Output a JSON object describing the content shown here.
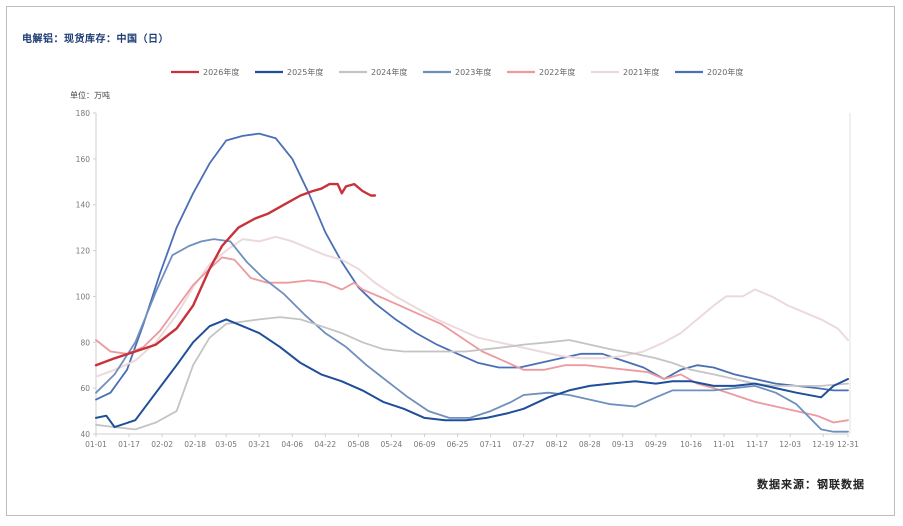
{
  "title": "电解铝：现货库存：中国（日）",
  "source": "数据来源：钢联数据",
  "chart_data": {
    "type": "line",
    "unit_label": "单位：万吨",
    "ylim": [
      40,
      180
    ],
    "yticks": [
      40,
      60,
      80,
      100,
      120,
      140,
      160,
      180
    ],
    "xticks": [
      "01-01",
      "01-17",
      "02-02",
      "02-18",
      "03-05",
      "03-21",
      "04-06",
      "04-22",
      "05-08",
      "05-24",
      "06-09",
      "06-25",
      "07-11",
      "07-27",
      "08-12",
      "08-28",
      "09-13",
      "09-29",
      "10-16",
      "11-01",
      "11-17",
      "12-03",
      "12-19",
      "12-31"
    ],
    "x_doy": [
      1,
      17,
      33,
      49,
      64,
      80,
      96,
      112,
      128,
      144,
      160,
      176,
      192,
      208,
      224,
      240,
      256,
      272,
      289,
      305,
      321,
      337,
      353,
      365
    ],
    "legend_position": "top-center",
    "grid": false,
    "series": [
      {
        "name": "2026年度",
        "color": "#c8323a",
        "width": 2.4,
        "points": [
          [
            1,
            70
          ],
          [
            10,
            73
          ],
          [
            20,
            76
          ],
          [
            30,
            79
          ],
          [
            40,
            86
          ],
          [
            48,
            96
          ],
          [
            56,
            112
          ],
          [
            62,
            122
          ],
          [
            70,
            130
          ],
          [
            78,
            134
          ],
          [
            84,
            136
          ],
          [
            92,
            140
          ],
          [
            100,
            144
          ],
          [
            106,
            146
          ],
          [
            110,
            147
          ],
          [
            114,
            149
          ],
          [
            118,
            149
          ],
          [
            120,
            145
          ],
          [
            122,
            148
          ],
          [
            126,
            149
          ],
          [
            130,
            146
          ],
          [
            134,
            144
          ],
          [
            136,
            144
          ]
        ]
      },
      {
        "name": "2025年度",
        "color": "#1f4e9a",
        "width": 2.0,
        "points": [
          [
            1,
            47
          ],
          [
            6,
            48
          ],
          [
            10,
            43
          ],
          [
            20,
            46
          ],
          [
            30,
            58
          ],
          [
            40,
            70
          ],
          [
            48,
            80
          ],
          [
            56,
            87
          ],
          [
            64,
            90
          ],
          [
            72,
            87
          ],
          [
            80,
            84
          ],
          [
            90,
            78
          ],
          [
            100,
            71
          ],
          [
            110,
            66
          ],
          [
            120,
            63
          ],
          [
            130,
            59
          ],
          [
            140,
            54
          ],
          [
            150,
            51
          ],
          [
            160,
            47
          ],
          [
            170,
            46
          ],
          [
            180,
            46
          ],
          [
            190,
            47
          ],
          [
            200,
            49
          ],
          [
            208,
            51
          ],
          [
            220,
            56
          ],
          [
            230,
            59
          ],
          [
            240,
            61
          ],
          [
            250,
            62
          ],
          [
            262,
            63
          ],
          [
            272,
            62
          ],
          [
            280,
            63
          ],
          [
            289,
            63
          ],
          [
            300,
            61
          ],
          [
            310,
            61
          ],
          [
            320,
            62
          ],
          [
            330,
            60
          ],
          [
            340,
            58
          ],
          [
            352,
            56
          ],
          [
            358,
            61
          ],
          [
            365,
            64
          ]
        ]
      },
      {
        "name": "2024年度",
        "color": "#c4c4c4",
        "width": 1.8,
        "points": [
          [
            1,
            44
          ],
          [
            10,
            43
          ],
          [
            20,
            42
          ],
          [
            30,
            45
          ],
          [
            40,
            50
          ],
          [
            48,
            70
          ],
          [
            56,
            82
          ],
          [
            64,
            88
          ],
          [
            72,
            89
          ],
          [
            80,
            90
          ],
          [
            90,
            91
          ],
          [
            100,
            90
          ],
          [
            110,
            87
          ],
          [
            120,
            84
          ],
          [
            130,
            80
          ],
          [
            140,
            77
          ],
          [
            150,
            76
          ],
          [
            160,
            76
          ],
          [
            170,
            76
          ],
          [
            180,
            76
          ],
          [
            190,
            77
          ],
          [
            200,
            78
          ],
          [
            208,
            79
          ],
          [
            220,
            80
          ],
          [
            230,
            81
          ],
          [
            240,
            79
          ],
          [
            250,
            77
          ],
          [
            262,
            75
          ],
          [
            272,
            73
          ],
          [
            280,
            71
          ],
          [
            289,
            68
          ],
          [
            300,
            66
          ],
          [
            310,
            64
          ],
          [
            320,
            62
          ],
          [
            330,
            61
          ],
          [
            340,
            61
          ],
          [
            352,
            61
          ],
          [
            365,
            62
          ]
        ]
      },
      {
        "name": "2023年度",
        "color": "#6f8fbd",
        "width": 1.8,
        "points": [
          [
            1,
            58
          ],
          [
            10,
            66
          ],
          [
            20,
            80
          ],
          [
            30,
            102
          ],
          [
            38,
            118
          ],
          [
            46,
            122
          ],
          [
            52,
            124
          ],
          [
            58,
            125
          ],
          [
            66,
            124
          ],
          [
            74,
            115
          ],
          [
            82,
            108
          ],
          [
            92,
            101
          ],
          [
            102,
            92
          ],
          [
            112,
            84
          ],
          [
            122,
            78
          ],
          [
            132,
            70
          ],
          [
            142,
            63
          ],
          [
            152,
            56
          ],
          [
            162,
            50
          ],
          [
            172,
            47
          ],
          [
            182,
            47
          ],
          [
            192,
            50
          ],
          [
            202,
            54
          ],
          [
            208,
            57
          ],
          [
            220,
            58
          ],
          [
            230,
            57
          ],
          [
            240,
            55
          ],
          [
            250,
            53
          ],
          [
            262,
            52
          ],
          [
            272,
            56
          ],
          [
            280,
            59
          ],
          [
            289,
            59
          ],
          [
            300,
            59
          ],
          [
            310,
            60
          ],
          [
            320,
            61
          ],
          [
            330,
            58
          ],
          [
            340,
            53
          ],
          [
            352,
            42
          ],
          [
            358,
            41
          ],
          [
            365,
            41
          ]
        ]
      },
      {
        "name": "2022年度",
        "color": "#ec9a9f",
        "width": 1.8,
        "points": [
          [
            1,
            81
          ],
          [
            8,
            76
          ],
          [
            16,
            75
          ],
          [
            24,
            78
          ],
          [
            32,
            85
          ],
          [
            40,
            95
          ],
          [
            48,
            105
          ],
          [
            56,
            112
          ],
          [
            62,
            117
          ],
          [
            68,
            116
          ],
          [
            76,
            108
          ],
          [
            84,
            106
          ],
          [
            94,
            106
          ],
          [
            104,
            107
          ],
          [
            112,
            106
          ],
          [
            120,
            103
          ],
          [
            126,
            106
          ],
          [
            130,
            103
          ],
          [
            138,
            100
          ],
          [
            148,
            96
          ],
          [
            158,
            92
          ],
          [
            168,
            88
          ],
          [
            178,
            82
          ],
          [
            188,
            76
          ],
          [
            198,
            72
          ],
          [
            208,
            68
          ],
          [
            218,
            68
          ],
          [
            228,
            70
          ],
          [
            238,
            70
          ],
          [
            248,
            69
          ],
          [
            258,
            68
          ],
          [
            268,
            67
          ],
          [
            276,
            64
          ],
          [
            284,
            66
          ],
          [
            292,
            62
          ],
          [
            300,
            60
          ],
          [
            310,
            57
          ],
          [
            320,
            54
          ],
          [
            330,
            52
          ],
          [
            340,
            50
          ],
          [
            350,
            48
          ],
          [
            358,
            45
          ],
          [
            365,
            46
          ]
        ]
      },
      {
        "name": "2021年度",
        "color": "#ecd9dc",
        "width": 2.0,
        "points": [
          [
            1,
            65
          ],
          [
            10,
            68
          ],
          [
            20,
            72
          ],
          [
            30,
            80
          ],
          [
            40,
            92
          ],
          [
            48,
            104
          ],
          [
            56,
            114
          ],
          [
            64,
            120
          ],
          [
            72,
            125
          ],
          [
            80,
            124
          ],
          [
            88,
            126
          ],
          [
            96,
            124
          ],
          [
            104,
            121
          ],
          [
            112,
            118
          ],
          [
            120,
            116
          ],
          [
            128,
            112
          ],
          [
            136,
            106
          ],
          [
            146,
            100
          ],
          [
            156,
            95
          ],
          [
            166,
            90
          ],
          [
            176,
            86
          ],
          [
            186,
            82
          ],
          [
            196,
            80
          ],
          [
            206,
            78
          ],
          [
            216,
            76
          ],
          [
            226,
            74
          ],
          [
            236,
            73
          ],
          [
            246,
            73
          ],
          [
            256,
            74
          ],
          [
            266,
            76
          ],
          [
            276,
            80
          ],
          [
            284,
            84
          ],
          [
            292,
            90
          ],
          [
            300,
            96
          ],
          [
            306,
            100
          ],
          [
            314,
            100
          ],
          [
            320,
            103
          ],
          [
            328,
            100
          ],
          [
            336,
            96
          ],
          [
            344,
            93
          ],
          [
            352,
            90
          ],
          [
            360,
            86
          ],
          [
            365,
            81
          ]
        ]
      },
      {
        "name": "2020年度",
        "color": "#4a6fb5",
        "width": 1.8,
        "points": [
          [
            1,
            55
          ],
          [
            8,
            58
          ],
          [
            16,
            68
          ],
          [
            24,
            88
          ],
          [
            32,
            110
          ],
          [
            40,
            130
          ],
          [
            48,
            145
          ],
          [
            56,
            158
          ],
          [
            64,
            168
          ],
          [
            72,
            170
          ],
          [
            80,
            171
          ],
          [
            88,
            169
          ],
          [
            96,
            160
          ],
          [
            104,
            145
          ],
          [
            112,
            128
          ],
          [
            120,
            115
          ],
          [
            128,
            104
          ],
          [
            136,
            97
          ],
          [
            146,
            90
          ],
          [
            156,
            84
          ],
          [
            166,
            79
          ],
          [
            176,
            75
          ],
          [
            186,
            71
          ],
          [
            196,
            69
          ],
          [
            206,
            69
          ],
          [
            216,
            71
          ],
          [
            226,
            73
          ],
          [
            236,
            75
          ],
          [
            246,
            75
          ],
          [
            256,
            72
          ],
          [
            266,
            69
          ],
          [
            276,
            64
          ],
          [
            284,
            68
          ],
          [
            292,
            70
          ],
          [
            300,
            69
          ],
          [
            310,
            66
          ],
          [
            320,
            64
          ],
          [
            330,
            62
          ],
          [
            340,
            61
          ],
          [
            350,
            60
          ],
          [
            358,
            59
          ],
          [
            365,
            59
          ]
        ]
      }
    ]
  }
}
